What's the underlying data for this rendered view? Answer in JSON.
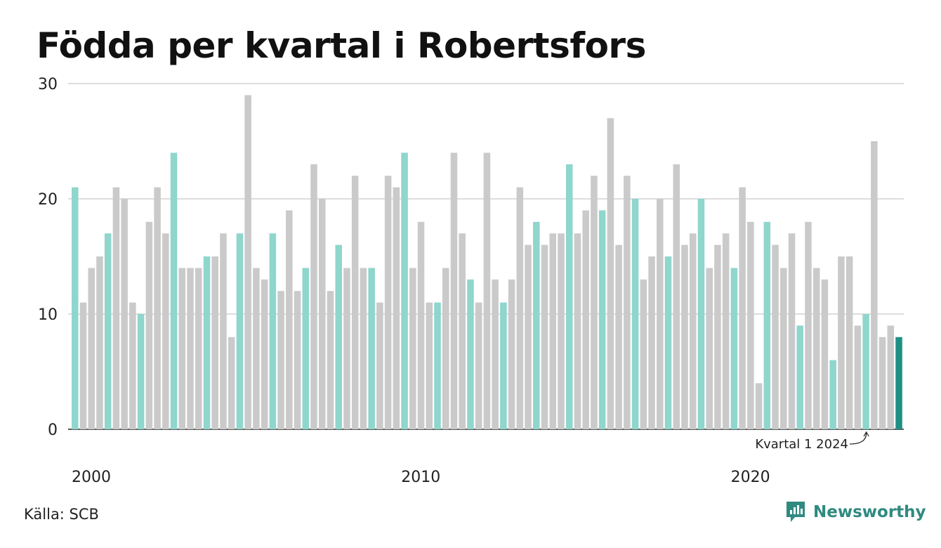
{
  "title": "Födda per kvartal i Robertsfors",
  "source": "Källa: SCB",
  "brand": "Newsworthy",
  "colors": {
    "highlight": "#8fd6cd",
    "other": "#cacaca",
    "latest": "#1f8f84",
    "grid": "#dddddd",
    "axis": "#222222",
    "brand": "#2f8a80"
  },
  "chart_data": {
    "type": "bar",
    "ylim": [
      0,
      30
    ],
    "yticks": [
      0,
      10,
      20,
      30
    ],
    "xticks": [
      {
        "index": 0,
        "label": "2000"
      },
      {
        "index": 40,
        "label": "2010"
      },
      {
        "index": 80,
        "label": "2020"
      }
    ],
    "grid": true,
    "highlight_rule": "first quarter of each year",
    "annotation": {
      "index": 96,
      "text": "Kvartal 1 2024"
    },
    "series": [
      {
        "start": "2000 Q1",
        "values": [
          21,
          11,
          14,
          15,
          17,
          21,
          20,
          11,
          10,
          18,
          21,
          17,
          24,
          14,
          14,
          14,
          15,
          15,
          17,
          8,
          17,
          29,
          14,
          13,
          17,
          12,
          19,
          12,
          14,
          23,
          20,
          12,
          16,
          14,
          22,
          14,
          14,
          11,
          22,
          21,
          24,
          14,
          18,
          11,
          11,
          14,
          24,
          17,
          13,
          11,
          24,
          13,
          11,
          13,
          21,
          16,
          18,
          16,
          17,
          17,
          23,
          17,
          19,
          22,
          19,
          27,
          16,
          22,
          20,
          13,
          15,
          20,
          15,
          23,
          16,
          17,
          20,
          14,
          16,
          17,
          14,
          21,
          18,
          4,
          18,
          16,
          14,
          17,
          9,
          18,
          14,
          13,
          6,
          15,
          15,
          9,
          10,
          25,
          8,
          9,
          8
        ]
      }
    ]
  }
}
